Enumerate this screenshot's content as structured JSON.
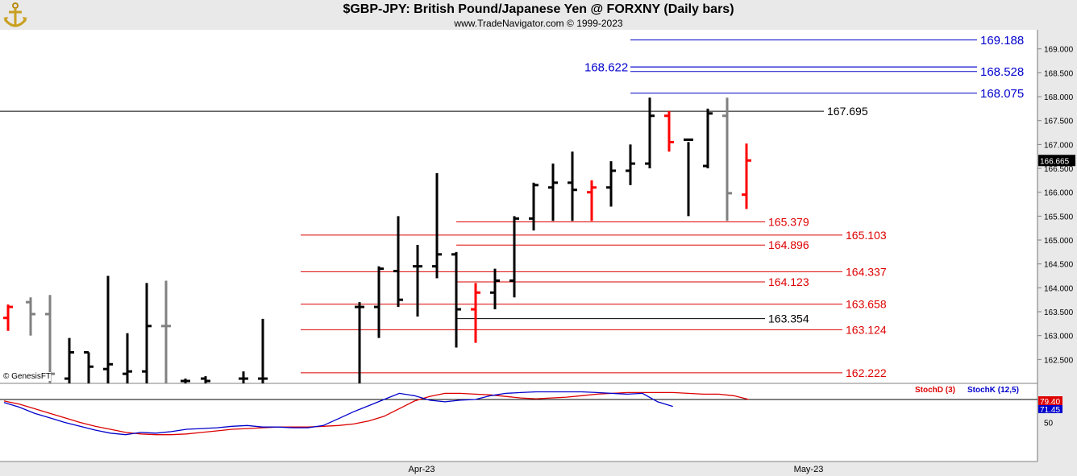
{
  "header": {
    "title": "$GBP-JPY:  British Pound/Japanese Yen @ FORXNY  (Daily bars)",
    "subtitle": "www.TradeNavigator.com © 1999-2023"
  },
  "watermark": "© GenesisFT",
  "colors": {
    "up": "#000000",
    "down": "#ff0000",
    "neutral": "#808080",
    "blue_level": "#0000cc",
    "red_level": "#dd0000",
    "stochD": "#dd0000",
    "stochK": "#0000cc"
  },
  "chart_data": [
    {
      "type": "ohlc",
      "title": "$GBP-JPY:  British Pound/Japanese Yen @ FORXNY  (Daily bars)",
      "y_ticks": [
        "169.000",
        "168.500",
        "168.000",
        "167.500",
        "167.000",
        "166.500",
        "166.000",
        "165.500",
        "165.000",
        "164.500",
        "164.000",
        "163.500",
        "163.000",
        "162.500"
      ],
      "ylim": [
        162.0,
        169.4
      ],
      "x_labels": [
        "Apr-23",
        "May-23"
      ],
      "last_price": "166.665",
      "bars": [
        {
          "o": 163.37,
          "h": 163.65,
          "l": 163.1,
          "c": 163.6,
          "col": "down"
        },
        {
          "o": 163.7,
          "h": 163.8,
          "l": 163.0,
          "c": 163.45,
          "col": "neutral"
        },
        {
          "o": 163.45,
          "h": 163.85,
          "l": 162.0,
          "c": 162.2,
          "col": "neutral"
        },
        {
          "o": 162.1,
          "h": 162.95,
          "l": 162.0,
          "c": 162.65,
          "col": "up"
        },
        {
          "o": 162.65,
          "h": 162.65,
          "l": 162.0,
          "c": 162.35,
          "col": "up"
        },
        {
          "o": 162.3,
          "h": 164.25,
          "l": 162.0,
          "c": 162.4,
          "col": "up"
        },
        {
          "o": 162.2,
          "h": 163.05,
          "l": 162.0,
          "c": 162.25,
          "col": "up"
        },
        {
          "o": 162.25,
          "h": 164.1,
          "l": 162.0,
          "c": 163.2,
          "col": "up"
        },
        {
          "o": 163.2,
          "h": 164.15,
          "l": 162.0,
          "c": 163.2,
          "col": "neutral"
        },
        {
          "o": 162.05,
          "h": 162.1,
          "l": 162.0,
          "c": 162.05,
          "col": "up"
        },
        {
          "o": 162.1,
          "h": 162.15,
          "l": 162.0,
          "c": 162.05,
          "col": "up"
        },
        {
          "o": 162.1,
          "h": 162.25,
          "l": 162.0,
          "c": 162.1,
          "col": "up"
        },
        {
          "o": 162.1,
          "h": 163.35,
          "l": 162.0,
          "c": 162.1,
          "col": "up"
        },
        {
          "o": 163.6,
          "h": 163.7,
          "l": 162.0,
          "c": 163.6,
          "col": "up"
        },
        {
          "o": 163.6,
          "h": 164.45,
          "l": 162.95,
          "c": 164.4,
          "col": "up"
        },
        {
          "o": 164.35,
          "h": 165.5,
          "l": 163.6,
          "c": 163.75,
          "col": "up"
        },
        {
          "o": 164.45,
          "h": 164.9,
          "l": 163.4,
          "c": 164.45,
          "col": "up"
        },
        {
          "o": 164.45,
          "h": 166.4,
          "l": 164.2,
          "c": 164.7,
          "col": "up"
        },
        {
          "o": 164.7,
          "h": 164.75,
          "l": 162.75,
          "c": 163.55,
          "col": "up"
        },
        {
          "o": 163.55,
          "h": 164.1,
          "l": 162.85,
          "c": 163.9,
          "col": "down"
        },
        {
          "o": 163.9,
          "h": 164.4,
          "l": 163.55,
          "c": 164.15,
          "col": "up"
        },
        {
          "o": 164.15,
          "h": 165.5,
          "l": 163.8,
          "c": 165.45,
          "col": "up"
        },
        {
          "o": 165.45,
          "h": 166.2,
          "l": 165.2,
          "c": 166.15,
          "col": "up"
        },
        {
          "o": 166.1,
          "h": 166.6,
          "l": 165.4,
          "c": 166.2,
          "col": "up"
        },
        {
          "o": 166.2,
          "h": 166.85,
          "l": 165.4,
          "c": 166.05,
          "col": "up"
        },
        {
          "o": 166.0,
          "h": 166.25,
          "l": 165.4,
          "c": 166.1,
          "col": "down"
        },
        {
          "o": 166.1,
          "h": 166.65,
          "l": 165.7,
          "c": 166.45,
          "col": "up"
        },
        {
          "o": 166.45,
          "h": 167.0,
          "l": 166.15,
          "c": 166.6,
          "col": "up"
        },
        {
          "o": 166.6,
          "h": 167.98,
          "l": 166.5,
          "c": 167.6,
          "col": "up"
        },
        {
          "o": 167.6,
          "h": 167.7,
          "l": 166.85,
          "c": 167.05,
          "col": "down"
        },
        {
          "o": 167.1,
          "h": 167.05,
          "l": 165.5,
          "c": 167.1,
          "col": "up"
        },
        {
          "o": 166.55,
          "h": 167.75,
          "l": 166.5,
          "c": 167.65,
          "col": "up"
        },
        {
          "o": 167.6,
          "h": 167.98,
          "l": 165.4,
          "c": 165.98,
          "col": "neutral"
        },
        {
          "o": 165.95,
          "h": 167.02,
          "l": 165.65,
          "c": 166.665,
          "col": "down"
        }
      ],
      "levels": [
        {
          "value": 169.188,
          "label": "169.188",
          "color": "blue"
        },
        {
          "value": 168.622,
          "label": "168.622",
          "color": "blue"
        },
        {
          "value": 168.528,
          "label": "168.528",
          "color": "blue"
        },
        {
          "value": 168.075,
          "label": "168.075",
          "color": "blue"
        },
        {
          "value": 167.695,
          "label": "167.695",
          "color": "black"
        },
        {
          "value": 165.379,
          "label": "165.379",
          "color": "red"
        },
        {
          "value": 165.103,
          "label": "165.103",
          "color": "red"
        },
        {
          "value": 164.896,
          "label": "164.896",
          "color": "red"
        },
        {
          "value": 164.337,
          "label": "164.337",
          "color": "red"
        },
        {
          "value": 164.123,
          "label": "164.123",
          "color": "red"
        },
        {
          "value": 163.658,
          "label": "163.658",
          "color": "red"
        },
        {
          "value": 163.354,
          "label": "163.354",
          "color": "black"
        },
        {
          "value": 163.124,
          "label": "163.124",
          "color": "red"
        },
        {
          "value": 162.222,
          "label": "162.222",
          "color": "red"
        }
      ]
    },
    {
      "type": "line",
      "title": "",
      "ylim": [
        0,
        100
      ],
      "y_ticks": [
        "50"
      ],
      "legend": [
        "StochD (3)",
        "StochK (12,5)"
      ],
      "last_values": {
        "StochD": "79.40",
        "StochK": "71.45"
      },
      "series": [
        {
          "name": "StochD (3)",
          "color": "red",
          "values": [
            78,
            74,
            68,
            62,
            56,
            50,
            45,
            41,
            37,
            35,
            34,
            34,
            35,
            37,
            39,
            41,
            42,
            43,
            44,
            44,
            44,
            45,
            46,
            48,
            52,
            58,
            68,
            78,
            84,
            88,
            88,
            87,
            86,
            84,
            82,
            81,
            82,
            83,
            85,
            87,
            88,
            89,
            89,
            89,
            89,
            88,
            87,
            87,
            85,
            80
          ]
        },
        {
          "name": "StochK (12,5)",
          "color": "blue",
          "values": [
            76,
            70,
            62,
            56,
            50,
            45,
            40,
            36,
            34,
            37,
            36,
            38,
            41,
            42,
            43,
            45,
            46,
            44,
            44,
            43,
            43,
            46,
            55,
            64,
            72,
            80,
            88,
            85,
            79,
            77,
            79,
            80,
            85,
            88,
            89,
            90,
            90,
            90,
            90,
            89,
            88,
            87,
            88,
            77,
            71
          ]
        }
      ]
    }
  ]
}
